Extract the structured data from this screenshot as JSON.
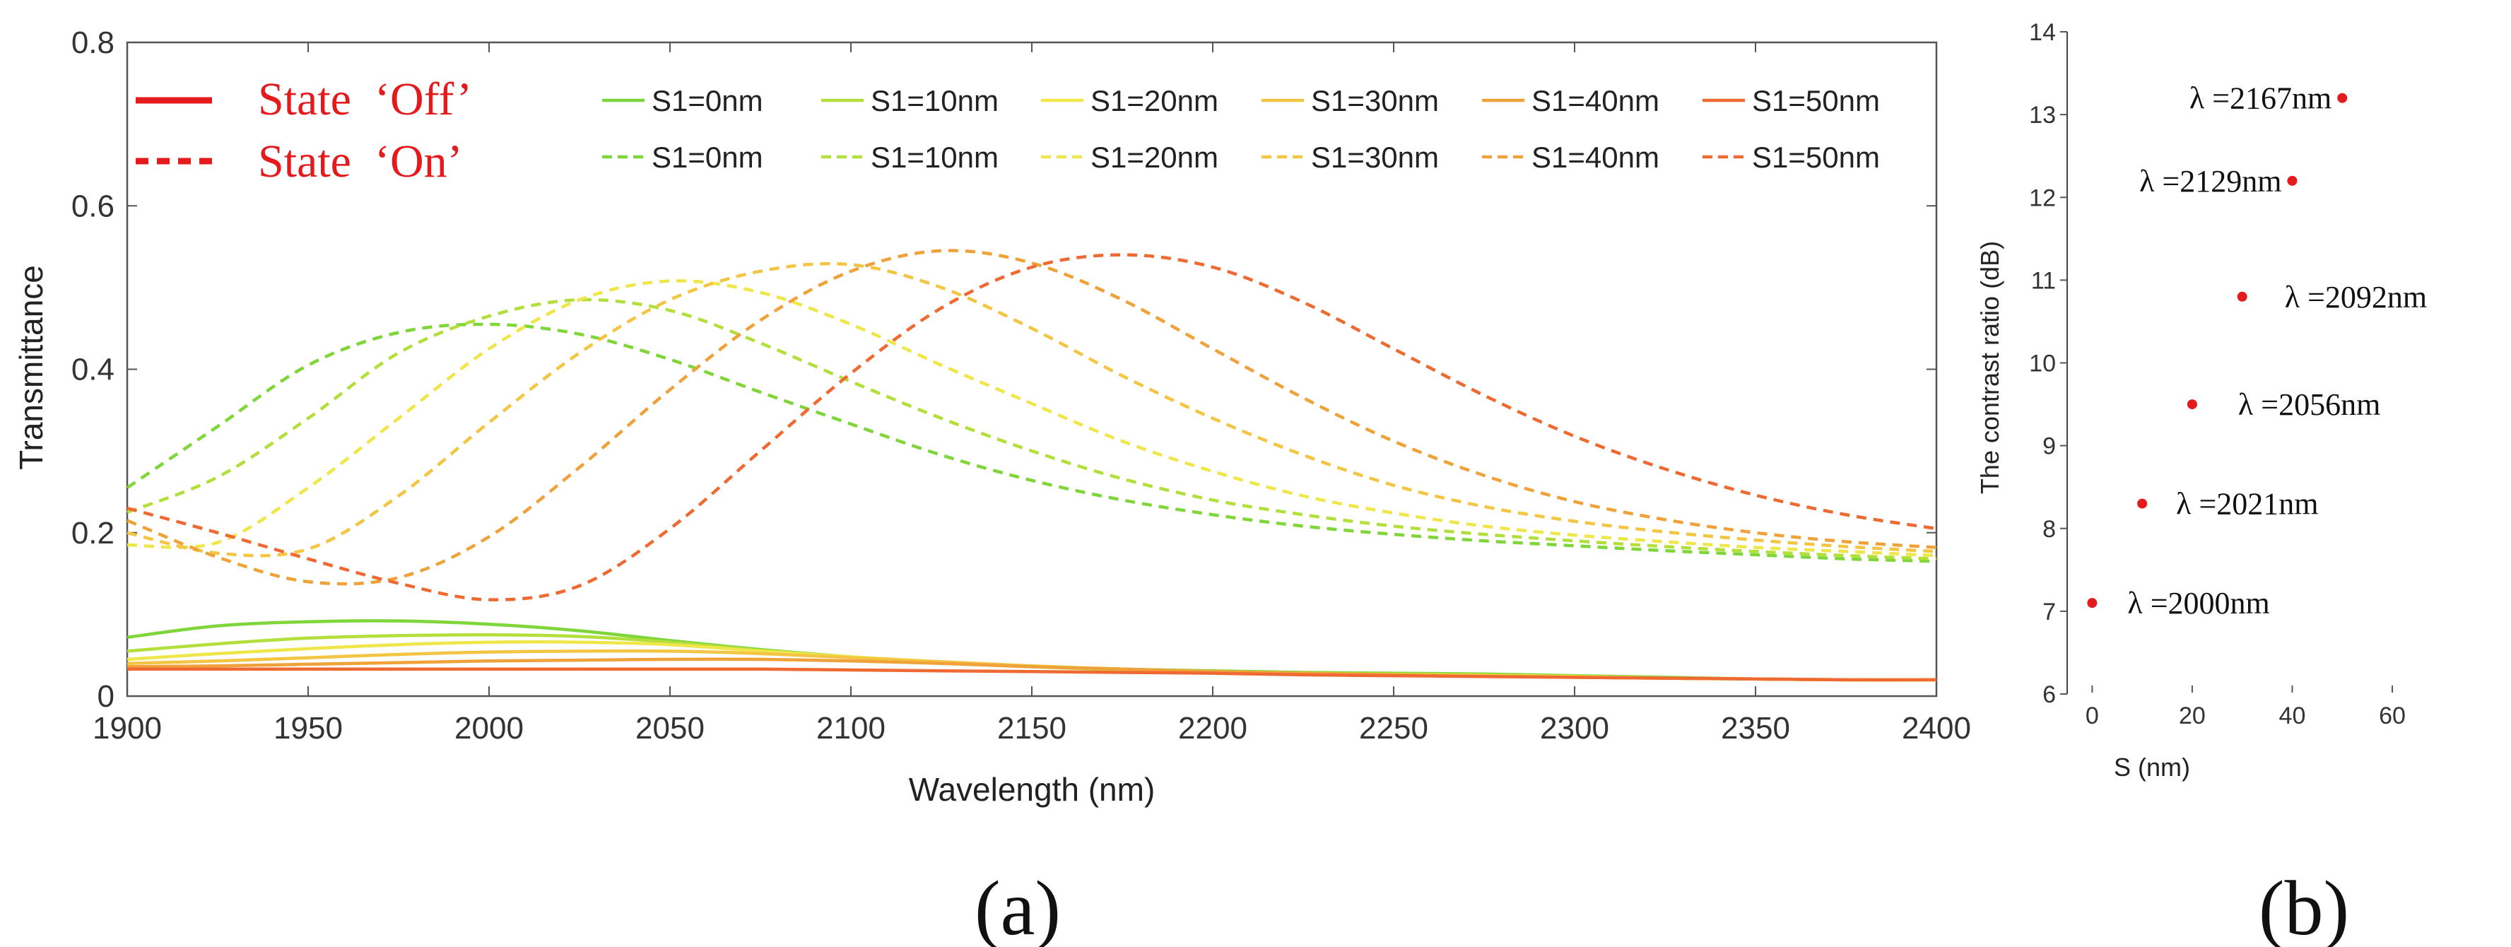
{
  "chart_data": [
    {
      "type": "line",
      "panel_label": "(a)",
      "xlabel": "Wavelength (nm)",
      "ylabel": "Transmittance",
      "xlim": [
        1900,
        2400
      ],
      "ylim": [
        0,
        0.8
      ],
      "xticks": [
        "1900",
        "1950",
        "2000",
        "2050",
        "2100",
        "2150",
        "2200",
        "2250",
        "2300",
        "2350",
        "2400"
      ],
      "yticks": [
        "0",
        "0.2",
        "0.4",
        "0.6",
        "0.8"
      ],
      "x": [
        1900,
        1925,
        1950,
        1975,
        2000,
        2025,
        2050,
        2075,
        2100,
        2125,
        2150,
        2175,
        2200,
        2225,
        2250,
        2275,
        2300,
        2325,
        2350,
        2375,
        2400
      ],
      "legend": {
        "state_off": "State  ‘Off’",
        "state_on": "State  ‘On’",
        "state_color": "#e41a1c"
      },
      "series": [
        {
          "name": "S1=0nm",
          "state": "Off",
          "color": "#7fd63a",
          "values": [
            0.072,
            0.086,
            0.091,
            0.092,
            0.088,
            0.08,
            0.068,
            0.057,
            0.048,
            0.041,
            0.036,
            0.033,
            0.031,
            0.029,
            0.028,
            0.027,
            0.025,
            0.023,
            0.021,
            0.02,
            0.02
          ]
        },
        {
          "name": "S1=10nm",
          "state": "Off",
          "color": "#b3df3c",
          "values": [
            0.055,
            0.064,
            0.071,
            0.074,
            0.075,
            0.073,
            0.066,
            0.056,
            0.048,
            0.041,
            0.036,
            0.032,
            0.03,
            0.028,
            0.027,
            0.026,
            0.024,
            0.022,
            0.021,
            0.02,
            0.02
          ]
        },
        {
          "name": "S1=20nm",
          "state": "Off",
          "color": "#efe64a",
          "values": [
            0.045,
            0.052,
            0.058,
            0.063,
            0.066,
            0.066,
            0.063,
            0.055,
            0.048,
            0.042,
            0.037,
            0.033,
            0.03,
            0.028,
            0.026,
            0.025,
            0.024,
            0.022,
            0.021,
            0.02,
            0.02
          ]
        },
        {
          "name": "S1=30nm",
          "state": "Off",
          "color": "#f4c542",
          "values": [
            0.04,
            0.043,
            0.047,
            0.051,
            0.054,
            0.055,
            0.055,
            0.052,
            0.047,
            0.042,
            0.037,
            0.033,
            0.03,
            0.028,
            0.026,
            0.025,
            0.023,
            0.022,
            0.021,
            0.02,
            0.02
          ]
        },
        {
          "name": "S1=40nm",
          "state": "Off",
          "color": "#f0a23a",
          "values": [
            0.036,
            0.037,
            0.039,
            0.041,
            0.043,
            0.044,
            0.045,
            0.045,
            0.043,
            0.04,
            0.036,
            0.033,
            0.03,
            0.028,
            0.026,
            0.024,
            0.023,
            0.022,
            0.021,
            0.02,
            0.02
          ]
        },
        {
          "name": "S1=50nm",
          "state": "Off",
          "color": "#ee6a32",
          "values": [
            0.033,
            0.033,
            0.033,
            0.033,
            0.033,
            0.033,
            0.033,
            0.033,
            0.032,
            0.031,
            0.03,
            0.029,
            0.028,
            0.026,
            0.025,
            0.024,
            0.023,
            0.022,
            0.021,
            0.02,
            0.02
          ]
        },
        {
          "name": "S1=0nm",
          "state": "On",
          "color": "#7fd63a",
          "values": [
            0.255,
            0.33,
            0.405,
            0.445,
            0.455,
            0.443,
            0.412,
            0.372,
            0.333,
            0.295,
            0.264,
            0.24,
            0.222,
            0.208,
            0.198,
            0.19,
            0.184,
            0.178,
            0.173,
            0.168,
            0.165
          ]
        },
        {
          "name": "S1=10nm",
          "state": "On",
          "color": "#b3df3c",
          "values": [
            0.225,
            0.268,
            0.34,
            0.42,
            0.465,
            0.485,
            0.472,
            0.432,
            0.385,
            0.34,
            0.3,
            0.266,
            0.24,
            0.222,
            0.208,
            0.198,
            0.19,
            0.183,
            0.177,
            0.172,
            0.168
          ]
        },
        {
          "name": "S1=20nm",
          "state": "On",
          "color": "#efe64a",
          "values": [
            0.185,
            0.188,
            0.255,
            0.34,
            0.425,
            0.485,
            0.508,
            0.494,
            0.455,
            0.405,
            0.358,
            0.312,
            0.275,
            0.245,
            0.224,
            0.208,
            0.197,
            0.189,
            0.182,
            0.177,
            0.172
          ]
        },
        {
          "name": "S1=30nm",
          "state": "On",
          "color": "#f4c542",
          "values": [
            0.2,
            0.175,
            0.18,
            0.245,
            0.335,
            0.42,
            0.485,
            0.52,
            0.528,
            0.5,
            0.45,
            0.392,
            0.34,
            0.295,
            0.258,
            0.232,
            0.214,
            0.201,
            0.191,
            0.183,
            0.177
          ]
        },
        {
          "name": "S1=40nm",
          "state": "On",
          "color": "#f0a23a",
          "values": [
            0.215,
            0.17,
            0.14,
            0.145,
            0.195,
            0.28,
            0.375,
            0.46,
            0.52,
            0.545,
            0.53,
            0.485,
            0.425,
            0.365,
            0.312,
            0.27,
            0.238,
            0.216,
            0.2,
            0.189,
            0.182
          ]
        },
        {
          "name": "S1=50nm",
          "state": "On",
          "color": "#ee6a32",
          "values": [
            0.23,
            0.2,
            0.168,
            0.138,
            0.118,
            0.135,
            0.205,
            0.3,
            0.395,
            0.475,
            0.525,
            0.54,
            0.525,
            0.482,
            0.425,
            0.368,
            0.318,
            0.278,
            0.246,
            0.222,
            0.205
          ]
        }
      ]
    },
    {
      "type": "scatter",
      "panel_label": "(b)",
      "xlabel": "S (nm)",
      "ylabel": "The contrast ratio (dB)",
      "xlim": [
        -5,
        60
      ],
      "ylim": [
        6,
        14
      ],
      "xticks": [
        "0",
        "20",
        "40",
        "60"
      ],
      "yticks": [
        "6",
        "7",
        "8",
        "9",
        "10",
        "11",
        "12",
        "13",
        "14"
      ],
      "marker_color": "#e41a1c",
      "points": [
        {
          "x": 0,
          "y": 7.1,
          "label": "λ =2000nm"
        },
        {
          "x": 10,
          "y": 8.3,
          "label": "λ =2021nm"
        },
        {
          "x": 20,
          "y": 9.5,
          "label": "λ =2056nm"
        },
        {
          "x": 30,
          "y": 10.8,
          "label": "λ =2092nm"
        },
        {
          "x": 40,
          "y": 12.2,
          "label": "λ =2129nm"
        },
        {
          "x": 50,
          "y": 13.2,
          "label": "λ =2167nm"
        }
      ]
    }
  ]
}
